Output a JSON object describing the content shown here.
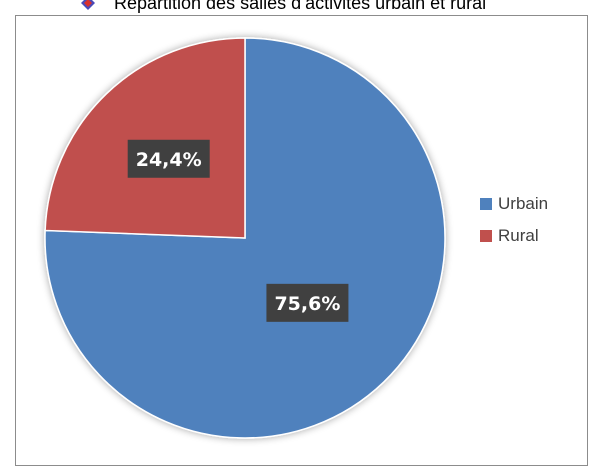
{
  "header": {
    "title": "Répartition des salles d’activités  urbain et rural",
    "bullet_icon": "diamond-bullet-icon"
  },
  "chart_data": {
    "type": "pie",
    "title": "",
    "categories": [
      "Urbain",
      "Rural"
    ],
    "values": [
      75.6,
      24.4
    ],
    "value_labels": [
      "75,6%",
      "24,4%"
    ],
    "colors": [
      "#4f81bd",
      "#c0504d"
    ],
    "start_angle_deg": 0,
    "direction": "clockwise",
    "legend_position": "right",
    "label_box_color": "#404040",
    "label_text_color": "#ffffff"
  }
}
